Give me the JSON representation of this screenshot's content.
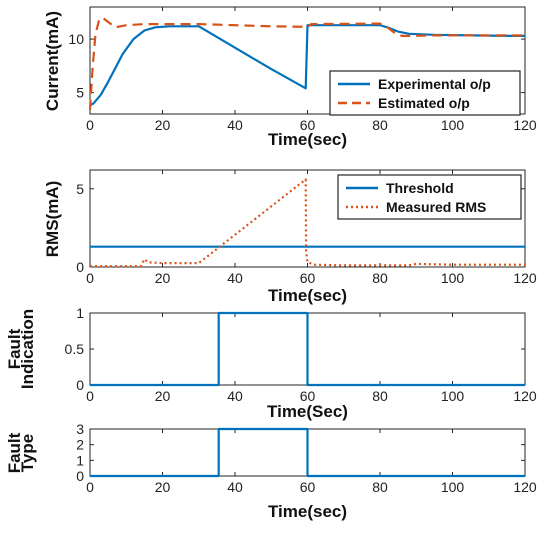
{
  "chart_data": [
    {
      "type": "line",
      "xlabel": "Time(sec)",
      "ylabel": "Current(mA)",
      "xlim": [
        0,
        120
      ],
      "ylim": [
        3,
        13
      ],
      "xticks": [
        "0",
        "20",
        "40",
        "60",
        "80",
        "100",
        "120"
      ],
      "yticks": [
        "5",
        "10"
      ],
      "grid": false,
      "legend": "bottom-right",
      "series": [
        {
          "name": "Experimental o/p",
          "color": "#0072BD",
          "style": "solid",
          "x": [
            0,
            1,
            3,
            5,
            7,
            9,
            12,
            15,
            18,
            22,
            25,
            30,
            40,
            50,
            59.5,
            60,
            62,
            70,
            80,
            82,
            85,
            88,
            95,
            105,
            115,
            120
          ],
          "y": [
            3.8,
            4.0,
            4.8,
            6.0,
            7.3,
            8.6,
            10.0,
            10.8,
            11.1,
            11.2,
            11.2,
            11.2,
            9.2,
            7.2,
            5.4,
            11.3,
            11.3,
            11.3,
            11.3,
            11.1,
            10.7,
            10.5,
            10.4,
            10.35,
            10.3,
            10.3
          ]
        },
        {
          "name": "Estimated o/p",
          "color": "#D95319",
          "style": "dashed",
          "x": [
            0,
            0.7,
            1.5,
            2.5,
            3.5,
            5,
            7,
            10,
            15,
            30,
            50,
            60,
            61,
            80,
            82,
            84,
            86,
            88,
            95,
            120
          ],
          "y": [
            3.4,
            7.2,
            10.4,
            11.8,
            12.0,
            11.6,
            11.1,
            11.3,
            11.4,
            11.4,
            11.2,
            11.15,
            11.4,
            11.45,
            11.1,
            10.6,
            10.3,
            10.3,
            10.35,
            10.35
          ]
        }
      ]
    },
    {
      "type": "line",
      "xlabel": "Time(sec)",
      "ylabel": "RMS(mA)",
      "xlim": [
        0,
        120
      ],
      "ylim": [
        0,
        6.2
      ],
      "xticks": [
        "0",
        "20",
        "40",
        "60",
        "80",
        "100",
        "120"
      ],
      "yticks": [
        "0",
        "5"
      ],
      "grid": false,
      "legend": "top-right",
      "series": [
        {
          "name": "Threshold",
          "color": "#0072BD",
          "style": "solid",
          "x": [
            0,
            120
          ],
          "y": [
            1.3,
            1.3
          ]
        },
        {
          "name": "Measured RMS",
          "color": "#D95319",
          "style": "dotted",
          "x": [
            0,
            14,
            15,
            16,
            20,
            29,
            30,
            59.5,
            59.6,
            60,
            62,
            70,
            88,
            90,
            100,
            120
          ],
          "y": [
            0.05,
            0.05,
            0.5,
            0.3,
            0.25,
            0.25,
            0.25,
            5.6,
            1.0,
            0.3,
            0.15,
            0.1,
            0.1,
            0.2,
            0.15,
            0.15
          ]
        }
      ]
    },
    {
      "type": "line",
      "xlabel": "Time(Sec)",
      "ylabel": [
        "Fault",
        "Indication"
      ],
      "xlim": [
        0,
        120
      ],
      "ylim": [
        0,
        1
      ],
      "xticks": [
        "0",
        "20",
        "40",
        "60",
        "80",
        "100",
        "120"
      ],
      "yticks": [
        "0",
        "0.5",
        "1"
      ],
      "grid": false,
      "series": [
        {
          "color": "#0072BD",
          "style": "solid",
          "x": [
            0,
            35.5,
            35.5,
            60,
            60,
            120
          ],
          "y": [
            0,
            0,
            1,
            1,
            0,
            0
          ]
        }
      ]
    },
    {
      "type": "line",
      "xlabel": "Time(sec)",
      "ylabel": [
        "Fault",
        "Type"
      ],
      "xlim": [
        0,
        120
      ],
      "ylim": [
        0,
        3
      ],
      "xticks": [
        "0",
        "20",
        "40",
        "60",
        "80",
        "100",
        "120"
      ],
      "yticks": [
        "0",
        "1",
        "2",
        "3"
      ],
      "grid": false,
      "series": [
        {
          "color": "#0072BD",
          "style": "solid",
          "x": [
            0,
            35.5,
            35.5,
            60,
            60,
            120
          ],
          "y": [
            0,
            0,
            3,
            3,
            0,
            0
          ]
        }
      ]
    }
  ]
}
